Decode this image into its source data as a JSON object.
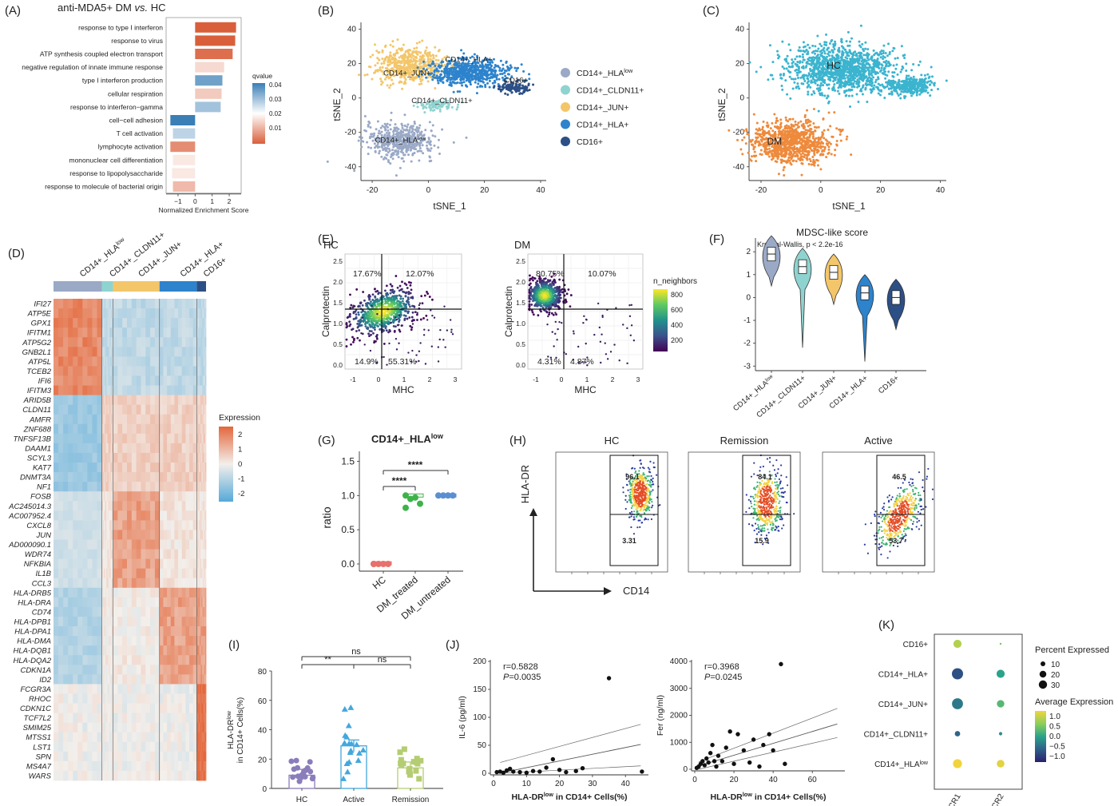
{
  "panels": [
    {
      "id": "A",
      "letter": "(A)",
      "title": "anti-MDA5+ DM vs. HC",
      "title_main": "anti-MDA5+ DM ",
      "title_italic": "vs.",
      "title_end": " HC",
      "chart_data": {
        "type": "bar",
        "orientation": "horizontal",
        "categories": [
          "response to type I interferon",
          "response to virus",
          "ATP synthesis coupled electron transport",
          "negative regulation of innate immune response",
          "type I interferon production",
          "cellular respiration",
          "response to interferon−gamma",
          "cell−cell adhesion",
          "T cell activation",
          "lymphocyte activation",
          "mononuclear cell differentiation",
          "response to lipopolysaccharide",
          "response to molecule of bacterial origin"
        ],
        "values": [
          2.4,
          2.35,
          2.2,
          1.7,
          1.6,
          1.55,
          1.5,
          -1.45,
          -1.3,
          -1.45,
          -1.3,
          -1.35,
          -1.3
        ],
        "qvalues": [
          0.004,
          0.004,
          0.006,
          0.02,
          0.036,
          0.018,
          0.032,
          0.04,
          0.03,
          0.01,
          0.022,
          0.022,
          0.016
        ],
        "xlabel": "Normalized Enrichment Score",
        "xticks": [
          "−1",
          "0",
          "1",
          "2"
        ],
        "xtick_values": [
          -1,
          0,
          1,
          2
        ],
        "xlim": [
          -1.7,
          2.7
        ],
        "legend": {
          "title": "qvalue",
          "ticks": [
            "0.04",
            "0.03",
            "0.02",
            "0.01"
          ],
          "low_color": "#d95f3b",
          "mid_color": "#ffffff",
          "high_color": "#3a7fb5"
        }
      }
    },
    {
      "id": "B",
      "letter": "(B)",
      "chart_data": {
        "type": "scatter",
        "xlabel": "tSNE_1",
        "ylabel": "tSNE_2",
        "xticks": [
          "-20",
          "0",
          "20",
          "40"
        ],
        "yticks": [
          "40",
          "20",
          "0",
          "-20",
          "-40"
        ],
        "xlim": [
          -24,
          42
        ],
        "ylim": [
          -48,
          44
        ],
        "series": [
          {
            "name": "CD14+_HLA",
            "sup": "low",
            "color": "#9aa9c6",
            "label": "CD14+_HLA",
            "label_sup": "low",
            "center": [
              -11,
              -26
            ],
            "spread": [
              10,
              11
            ]
          },
          {
            "name": "CD14+_CLDN11+",
            "color": "#8fd3d0",
            "label": "CD14+_CLDN11+",
            "center": [
              4,
              -4
            ],
            "spread": [
              4,
              3
            ]
          },
          {
            "name": "CD14+_JUN+",
            "color": "#f3c66a",
            "label": "CD14+_JUN+",
            "center": [
              -8,
              18
            ],
            "spread": [
              10,
              9
            ]
          },
          {
            "name": "CD14+_HLA+",
            "color": "#2d83cc",
            "label": "CD14+_HLA+",
            "center": [
              14,
              18
            ],
            "spread": [
              12,
              7
            ]
          },
          {
            "name": "CD16+",
            "color": "#2c4f86",
            "label": "CD16+",
            "center": [
              32,
              8
            ],
            "spread": [
              4,
              3
            ]
          }
        ]
      }
    },
    {
      "id": "C",
      "letter": "(C)",
      "chart_data": {
        "type": "scatter",
        "xlabel": "tSNE_1",
        "ylabel": "tSNE_2",
        "xticks": [
          "-20",
          "0",
          "20",
          "40"
        ],
        "yticks": [
          "40",
          "20",
          "0",
          "-20",
          "-40"
        ],
        "series": [
          {
            "name": "HC",
            "color": "#3bb4cf",
            "label": "HC"
          },
          {
            "name": "DM",
            "color": "#ee8a3c",
            "label": "DM"
          }
        ]
      }
    },
    {
      "id": "D",
      "letter": "(D)",
      "chart_data": {
        "type": "heatmap",
        "columns": [
          {
            "name": "CD14+_HLA",
            "sup": "low",
            "color": "#9aa9c6",
            "width": 0.26
          },
          {
            "name": "CD14+_CLDN11+",
            "color": "#8fd3d0",
            "width": 0.06
          },
          {
            "name": "CD14+_JUN+",
            "color": "#f3c66a",
            "width": 0.25
          },
          {
            "name": "CD14+_HLA+",
            "color": "#2d83cc",
            "width": 0.2
          },
          {
            "name": "CD16+",
            "color": "#2c4f86",
            "width": 0.05
          }
        ],
        "genes": [
          "IFI27",
          "ATP5E",
          "GPX1",
          "IFITM1",
          "ATP5G2",
          "GNB2L1",
          "ATP5L",
          "TCEB2",
          "IFI6",
          "IFITM3",
          "ARID5B",
          "CLDN11",
          "AMFR",
          "ZNF688",
          "TNFSF13B",
          "DAAM1",
          "SCYL3",
          "KAT7",
          "DNMT3A",
          "NF1",
          "FOSB",
          "AC245014.3",
          "AC007952.4",
          "CXCL8",
          "JUN",
          "AD000090.1",
          "WDR74",
          "NFKBIA",
          "IL1B",
          "CCL3",
          "HLA-DRB5",
          "HLA-DRA",
          "CD74",
          "HLA-DPB1",
          "HLA-DPA1",
          "HLA-DMA",
          "HLA-DQB1",
          "HLA-DQA2",
          "CDKN1A",
          "ID2",
          "FCGR3A",
          "RHOC",
          "CDKN1C",
          "TCF7L2",
          "SMIM25",
          "MTSS1",
          "LST1",
          "SPN",
          "MS4A7",
          "WARS"
        ],
        "gene_cluster": [
          0,
          0,
          0,
          0,
          0,
          0,
          0,
          0,
          0,
          0,
          1,
          1,
          1,
          1,
          1,
          1,
          1,
          1,
          1,
          1,
          2,
          2,
          2,
          2,
          2,
          2,
          2,
          2,
          2,
          2,
          3,
          3,
          3,
          3,
          3,
          3,
          3,
          3,
          3,
          3,
          4,
          4,
          4,
          4,
          4,
          4,
          4,
          4,
          4,
          4
        ],
        "legend": {
          "title": "Expression",
          "ticks": [
            "2",
            "1",
            "0",
            "-1",
            "-2"
          ]
        }
      }
    },
    {
      "id": "E",
      "letter": "(E)",
      "chart_data": [
        {
          "type": "scatter",
          "title": "HC",
          "xlabel": "MHC",
          "ylabel": "Calprotectin",
          "xticks": [
            "-1",
            "0",
            "1",
            "2",
            "3"
          ],
          "yticks": [
            "2.5",
            "2.0",
            "1.5",
            "1.0",
            "0.5",
            "0.0"
          ],
          "quadrants": {
            "top_left": "17.67%",
            "top_right": "12.07%",
            "bottom_left": "14.9%",
            "bottom_right": "55.31%"
          }
        },
        {
          "type": "scatter",
          "title": "DM",
          "xlabel": "MHC",
          "ylabel": "Calprotectin",
          "xticks": [
            "-1",
            "0",
            "1",
            "2",
            "3"
          ],
          "yticks": [
            "2.5",
            "2.0",
            "1.5",
            "1.0",
            "0.5",
            "0.0"
          ],
          "quadrants": {
            "top_left": "80.75%",
            "top_right": "10.07%",
            "bottom_left": "4.31%",
            "bottom_right": "4.87%"
          }
        }
      ],
      "legend": {
        "title": "n_neighbors",
        "ticks": [
          "800",
          "600",
          "400",
          "200"
        ]
      }
    },
    {
      "id": "F",
      "letter": "(F)",
      "chart_data": {
        "type": "violin",
        "title": "MDSC-like score",
        "annotation": "Kruskal-Wallis, p < 2.2e-16",
        "categories": [
          "CD14+_HLA",
          "CD14+_CLDN11+",
          "CD14+_JUN+",
          "CD14+_HLA+",
          "CD16+"
        ],
        "category_sup": [
          "low",
          "",
          "",
          "",
          ""
        ],
        "medians": [
          1.9,
          1.35,
          1.1,
          0.2,
          0.0
        ],
        "colors": [
          "#9aa9c6",
          "#8fd3d0",
          "#f3c66a",
          "#2d83cc",
          "#2c4f86"
        ],
        "yticks": [
          "2",
          "1",
          "0",
          "-1",
          "-2",
          "-3"
        ],
        "ylim": [
          -3.2,
          2.6
        ]
      }
    },
    {
      "id": "G",
      "letter": "(G)",
      "chart_data": {
        "type": "scatter",
        "title": "CD14+_HLA",
        "title_sup": "low",
        "ylabel": "ratio",
        "categories": [
          "HC",
          "DM_treated",
          "DM_untreated"
        ],
        "yticks": [
          "1.5",
          "1.0",
          "0.5",
          "0.0"
        ],
        "colors": [
          "#e8716d",
          "#3db34a",
          "#5b8fd0"
        ],
        "points": [
          [
            0.0,
            0.0,
            0.0,
            0.0,
            0.0
          ],
          [
            1.0,
            0.95,
            0.97,
            0.88,
            0.82
          ],
          [
            1.0,
            1.0,
            1.0,
            1.0
          ]
        ],
        "significance": [
          "****",
          "****"
        ]
      }
    },
    {
      "id": "H",
      "letter": "(H)",
      "xlabel": "CD14",
      "ylabel": "HLA-DR",
      "plots": [
        {
          "title": "HC",
          "upper": "96.1",
          "lower": "3.31"
        },
        {
          "title": "Remission",
          "upper": "84.1",
          "lower": "15.9"
        },
        {
          "title": "Active",
          "upper": "46.5",
          "lower": "53.7"
        }
      ]
    },
    {
      "id": "I",
      "letter": "(I)",
      "chart_data": {
        "type": "bar",
        "categories": [
          "HC",
          "Active",
          "Remission"
        ],
        "values": [
          9,
          29,
          14
        ],
        "colors": [
          "#8b7dbb",
          "#44a7dc",
          "#b5cd72"
        ],
        "ylabel_line1": "HLA-DR",
        "ylabel_sup": "low",
        "ylabel_line2": "in CD14+ Cells(%)",
        "yticks": [
          "80",
          "60",
          "40",
          "20",
          "0"
        ],
        "ylim": [
          0,
          80
        ],
        "significance": [
          "ns",
          "**",
          "ns"
        ]
      }
    },
    {
      "id": "J",
      "letter": "(J)",
      "chart_data": [
        {
          "type": "scatter",
          "ylabel": "IL-6 (pg/ml)",
          "xlabel": "HLA-DR",
          "xlabel_sup": "low",
          "xlabel_end": " in CD14+ Cells(%)",
          "r": "r=0.5828",
          "p_label": "P",
          "p_value": "=0.0035",
          "xticks": [
            "0",
            "10",
            "20",
            "30",
            "40"
          ],
          "yticks": [
            "200",
            "150",
            "100",
            "50",
            "0"
          ],
          "xlim": [
            0,
            46
          ],
          "ylim": [
            0,
            200
          ],
          "x": [
            1,
            2,
            3,
            4,
            5,
            6,
            8,
            10,
            12,
            14,
            16,
            18,
            20,
            22,
            25,
            27,
            35,
            45
          ],
          "y": [
            2,
            3,
            1,
            5,
            8,
            3,
            2,
            1,
            4,
            3,
            10,
            25,
            6,
            2,
            4,
            9,
            170,
            3
          ]
        },
        {
          "type": "scatter",
          "ylabel": "Fer (ng/ml)",
          "xlabel": "HLA-DR",
          "xlabel_sup": "low",
          "xlabel_end": " in CD14+ Cells(%)",
          "r": "r=0.3968",
          "p_label": "P",
          "p_value": "=0.0245",
          "xticks": [
            "0",
            "20",
            "40",
            "60"
          ],
          "yticks": [
            "4000",
            "3000",
            "2000",
            "1000",
            "0"
          ],
          "xlim": [
            0,
            75
          ],
          "ylim": [
            0,
            4000
          ],
          "x": [
            1,
            2,
            3,
            4,
            5,
            6,
            7,
            8,
            9,
            10,
            11,
            12,
            14,
            16,
            18,
            20,
            22,
            25,
            28,
            30,
            33,
            35,
            38,
            40,
            44,
            46
          ],
          "y": [
            50,
            100,
            200,
            300,
            150,
            400,
            250,
            600,
            900,
            300,
            100,
            500,
            300,
            800,
            1400,
            200,
            1300,
            700,
            250,
            1100,
            100,
            900,
            1300,
            700,
            3900,
            200
          ]
        }
      ]
    },
    {
      "id": "K",
      "letter": "(K)",
      "chart_data": {
        "type": "dot",
        "rows": [
          "CD16+",
          "CD14+_HLA+",
          "CD14+_JUN+",
          "CD14+_CLDN11+",
          "CD14+_HLA"
        ],
        "row_sup": [
          "",
          "",
          "",
          "",
          "low"
        ],
        "columns": [
          "CCR1",
          "CCR2"
        ],
        "percent": [
          [
            18,
            1
          ],
          [
            34,
            18
          ],
          [
            33,
            15
          ],
          [
            8,
            3
          ],
          [
            22,
            16
          ]
        ],
        "avg": [
          [
            0.9,
            0.5
          ],
          [
            -0.8,
            0.0
          ],
          [
            -0.4,
            0.3
          ],
          [
            -0.6,
            -0.2
          ],
          [
            1.3,
            1.2
          ]
        ],
        "size_legend": {
          "title": "Percent Expressed",
          "ticks": [
            "10",
            "20",
            "30"
          ]
        },
        "color_legend": {
          "title": "Average Expression",
          "ticks": [
            "1.0",
            "0.5",
            "0.0",
            "−0.5",
            "−1.0"
          ]
        }
      }
    }
  ]
}
